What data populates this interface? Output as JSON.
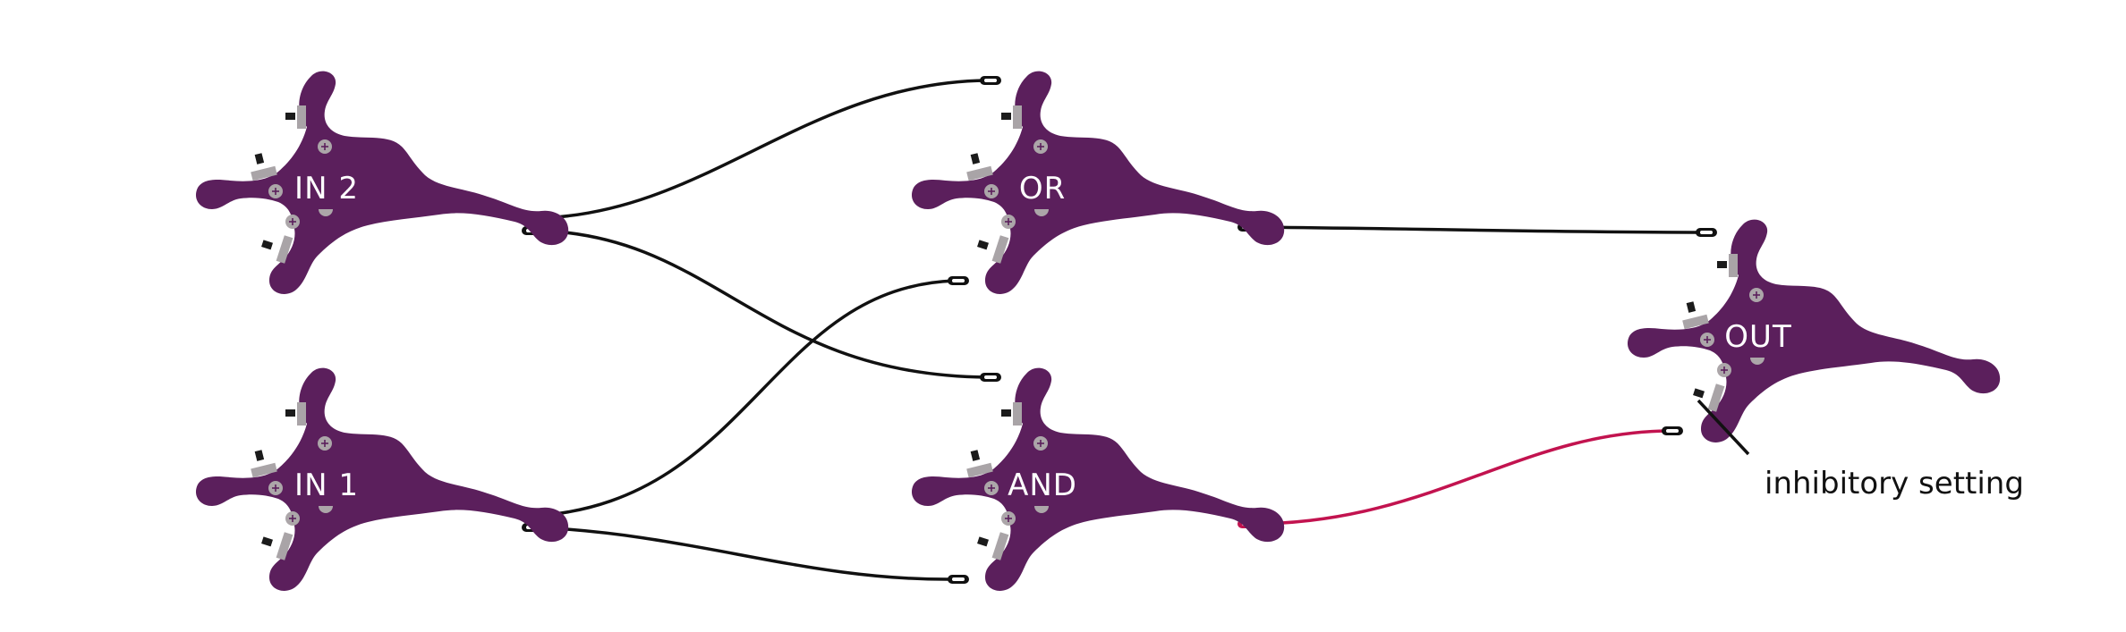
{
  "diagram": {
    "title": "",
    "colors": {
      "neuron": "#5b1f5c",
      "excitatory_wire": "#111111",
      "inhibitory_wire": "#c2134f",
      "connector": "#a9a4a7"
    },
    "neurons": [
      {
        "id": "in2",
        "label": "IN 2"
      },
      {
        "id": "in1",
        "label": "IN 1"
      },
      {
        "id": "or",
        "label": "OR"
      },
      {
        "id": "and",
        "label": "AND"
      },
      {
        "id": "out",
        "label": "OUT"
      }
    ],
    "connections": [
      {
        "from": "IN 2",
        "to": "OR",
        "type": "excitatory"
      },
      {
        "from": "IN 2",
        "to": "AND",
        "type": "excitatory"
      },
      {
        "from": "IN 1",
        "to": "OR",
        "type": "excitatory"
      },
      {
        "from": "IN 1",
        "to": "AND",
        "type": "excitatory"
      },
      {
        "from": "OR",
        "to": "OUT",
        "type": "excitatory"
      },
      {
        "from": "AND",
        "to": "OUT",
        "type": "inhibitory"
      }
    ],
    "callout": {
      "label": "inhibitory setting"
    }
  }
}
